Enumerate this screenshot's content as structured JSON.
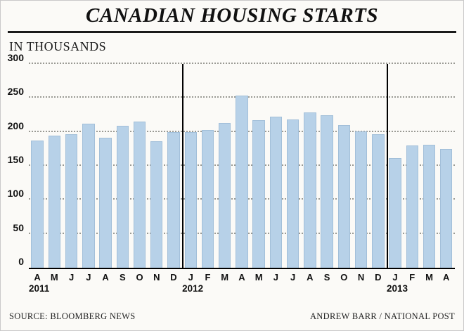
{
  "title": "CANADIAN HOUSING STARTS",
  "subtitle": "IN THOUSANDS",
  "footer": {
    "source": "SOURCE: BLOOMBERG NEWS",
    "credit": "ANDREW BARR / NATIONAL POST"
  },
  "colors": {
    "bar_fill": "#b7d1e8",
    "bar_border": "#a2bfd9",
    "axis": "#000000",
    "gridline": "#9a9a94",
    "background": "#fbfaf7"
  },
  "chart_data": {
    "type": "bar",
    "title": "CANADIAN HOUSING STARTS",
    "ylabel": "IN THOUSANDS",
    "ylim": [
      0,
      300
    ],
    "yticks": [
      0,
      50,
      100,
      150,
      200,
      250,
      300
    ],
    "grid": "dotted horizontal",
    "groups": [
      {
        "year": "2011",
        "months": [
          "A",
          "M",
          "J",
          "J",
          "A",
          "S",
          "O",
          "N",
          "D"
        ],
        "values": [
          187,
          195,
          197,
          212,
          191,
          209,
          215,
          186,
          200
        ]
      },
      {
        "year": "2012",
        "months": [
          "J",
          "F",
          "M",
          "A",
          "M",
          "J",
          "J",
          "A",
          "S",
          "O",
          "N",
          "D"
        ],
        "values": [
          200,
          203,
          213,
          253,
          217,
          222,
          218,
          229,
          224,
          210,
          201,
          197
        ]
      },
      {
        "year": "2013",
        "months": [
          "J",
          "F",
          "M",
          "A"
        ],
        "values": [
          161,
          180,
          181,
          175
        ]
      }
    ]
  }
}
